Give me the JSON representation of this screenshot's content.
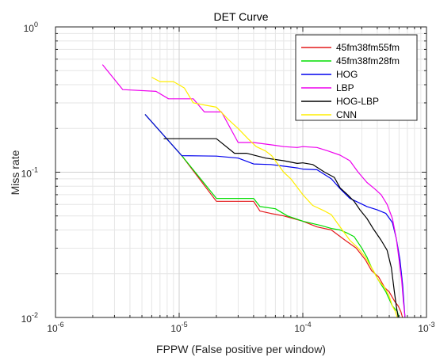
{
  "chart_data": {
    "type": "line",
    "title": "DET Curve",
    "xlabel": "FPPW (False positive per window)",
    "ylabel": "Miss rate",
    "xscale": "log",
    "yscale": "log",
    "xlim": [
      1e-06,
      0.001
    ],
    "ylim": [
      0.01,
      1
    ],
    "grid": true,
    "legend_position": "top-right",
    "x_ticks": [
      {
        "base": "10",
        "exp": "-6"
      },
      {
        "base": "10",
        "exp": "-5"
      },
      {
        "base": "10",
        "exp": "-4"
      },
      {
        "base": "10",
        "exp": "-3"
      }
    ],
    "y_ticks": [
      {
        "base": "10",
        "exp": "-2"
      },
      {
        "base": "10",
        "exp": "-1"
      },
      {
        "base": "10",
        "exp": "0"
      }
    ],
    "series": [
      {
        "name": "45fm38fm55fm",
        "color": "#e41a1c",
        "points": [
          [
            5.3e-06,
            0.25
          ],
          [
            1.05e-05,
            0.13
          ],
          [
            2e-05,
            0.063
          ],
          [
            3.3e-05,
            0.063
          ],
          [
            4e-05,
            0.063
          ],
          [
            4.5e-05,
            0.054
          ],
          [
            5.5e-05,
            0.052
          ],
          [
            7e-05,
            0.05
          ],
          [
            0.0001,
            0.046
          ],
          [
            0.00013,
            0.042
          ],
          [
            0.00017,
            0.04
          ],
          [
            0.00022,
            0.034
          ],
          [
            0.00027,
            0.03
          ],
          [
            0.00032,
            0.025
          ],
          [
            0.00036,
            0.021
          ],
          [
            0.00041,
            0.019
          ],
          [
            0.00046,
            0.016
          ],
          [
            0.0005,
            0.015
          ],
          [
            0.00055,
            0.013
          ],
          [
            0.00059,
            0.012
          ],
          [
            0.00062,
            0.011
          ],
          [
            0.00064,
            0.01
          ]
        ]
      },
      {
        "name": "45fm38fm28fm",
        "color": "#00dd00",
        "points": [
          [
            5.3e-06,
            0.25
          ],
          [
            1.05e-05,
            0.13
          ],
          [
            2e-05,
            0.066
          ],
          [
            4e-05,
            0.066
          ],
          [
            4.5e-05,
            0.058
          ],
          [
            6e-05,
            0.056
          ],
          [
            7.5e-05,
            0.05
          ],
          [
            0.0001,
            0.046
          ],
          [
            0.00014,
            0.043
          ],
          [
            0.00017,
            0.041
          ],
          [
            0.0002,
            0.04
          ],
          [
            0.00023,
            0.038
          ],
          [
            0.00026,
            0.036
          ],
          [
            0.0003,
            0.03
          ],
          [
            0.00033,
            0.026
          ],
          [
            0.00036,
            0.022
          ],
          [
            0.00041,
            0.018
          ],
          [
            0.00047,
            0.015
          ],
          [
            0.00053,
            0.012
          ],
          [
            0.00058,
            0.011
          ],
          [
            0.0006,
            0.01
          ]
        ]
      },
      {
        "name": "HOG",
        "color": "#0000ee",
        "points": [
          [
            5.3e-06,
            0.25
          ],
          [
            1.05e-05,
            0.13
          ],
          [
            2e-05,
            0.129
          ],
          [
            3e-05,
            0.125
          ],
          [
            4e-05,
            0.114
          ],
          [
            5.5e-05,
            0.113
          ],
          [
            7e-05,
            0.11
          ],
          [
            9e-05,
            0.107
          ],
          [
            0.0001,
            0.105
          ],
          [
            0.00013,
            0.104
          ],
          [
            0.00017,
            0.09
          ],
          [
            0.0002,
            0.077
          ],
          [
            0.00024,
            0.066
          ],
          [
            0.00028,
            0.062
          ],
          [
            0.00033,
            0.058
          ],
          [
            0.0004,
            0.055
          ],
          [
            0.00047,
            0.052
          ],
          [
            0.00053,
            0.045
          ],
          [
            0.00057,
            0.035
          ],
          [
            0.00061,
            0.025
          ],
          [
            0.00064,
            0.017
          ],
          [
            0.00066,
            0.012
          ],
          [
            0.00067,
            0.01
          ]
        ]
      },
      {
        "name": "LBP",
        "color": "#ee00ee",
        "points": [
          [
            2.4e-06,
            0.55
          ],
          [
            3.5e-06,
            0.37
          ],
          [
            6.5e-06,
            0.36
          ],
          [
            8.2e-06,
            0.32
          ],
          [
            1.3e-05,
            0.32
          ],
          [
            1.6e-05,
            0.26
          ],
          [
            2.2e-05,
            0.26
          ],
          [
            3e-05,
            0.16
          ],
          [
            4e-05,
            0.16
          ],
          [
            6e-05,
            0.153
          ],
          [
            7e-05,
            0.15
          ],
          [
            9e-05,
            0.148
          ],
          [
            0.0001,
            0.15
          ],
          [
            0.00013,
            0.148
          ],
          [
            0.00016,
            0.14
          ],
          [
            0.0002,
            0.131
          ],
          [
            0.00024,
            0.12
          ],
          [
            0.00028,
            0.1
          ],
          [
            0.00033,
            0.085
          ],
          [
            0.00038,
            0.077
          ],
          [
            0.00043,
            0.07
          ],
          [
            0.00048,
            0.06
          ],
          [
            0.00053,
            0.048
          ],
          [
            0.00057,
            0.035
          ],
          [
            0.0006,
            0.025
          ],
          [
            0.00063,
            0.018
          ],
          [
            0.00065,
            0.013
          ],
          [
            0.00067,
            0.01
          ]
        ]
      },
      {
        "name": "HOG-LBP",
        "color": "#000000",
        "points": [
          [
            7.5e-06,
            0.17
          ],
          [
            1.2e-05,
            0.17
          ],
          [
            2e-05,
            0.17
          ],
          [
            2.8e-05,
            0.135
          ],
          [
            3.5e-05,
            0.135
          ],
          [
            5e-05,
            0.125
          ],
          [
            7e-05,
            0.12
          ],
          [
            9e-05,
            0.115
          ],
          [
            0.0001,
            0.116
          ],
          [
            0.00012,
            0.113
          ],
          [
            0.00015,
            0.1
          ],
          [
            0.00018,
            0.092
          ],
          [
            0.0002,
            0.078
          ],
          [
            0.00023,
            0.07
          ],
          [
            0.00026,
            0.063
          ],
          [
            0.00029,
            0.055
          ],
          [
            0.00033,
            0.048
          ],
          [
            0.00037,
            0.041
          ],
          [
            0.00043,
            0.034
          ],
          [
            0.00048,
            0.029
          ],
          [
            0.00052,
            0.022
          ],
          [
            0.00055,
            0.015
          ],
          [
            0.00057,
            0.012
          ],
          [
            0.00059,
            0.01
          ]
        ]
      },
      {
        "name": "CNN",
        "color": "#ffee00",
        "points": [
          [
            6e-06,
            0.45
          ],
          [
            7e-06,
            0.42
          ],
          [
            9e-06,
            0.42
          ],
          [
            1.1e-05,
            0.38
          ],
          [
            1.3e-05,
            0.3
          ],
          [
            1.6e-05,
            0.29
          ],
          [
            2e-05,
            0.28
          ],
          [
            2.5e-05,
            0.23
          ],
          [
            3e-05,
            0.2
          ],
          [
            3.6e-05,
            0.17
          ],
          [
            4.2e-05,
            0.15
          ],
          [
            5e-05,
            0.14
          ],
          [
            5.6e-05,
            0.13
          ],
          [
            6e-05,
            0.12
          ],
          [
            7e-05,
            0.1
          ],
          [
            8e-05,
            0.09
          ],
          [
            0.0001,
            0.07
          ],
          [
            0.00012,
            0.059
          ],
          [
            0.00015,
            0.054
          ],
          [
            0.00017,
            0.051
          ],
          [
            0.0002,
            0.042
          ],
          [
            0.00024,
            0.034
          ],
          [
            0.00028,
            0.03
          ],
          [
            0.00032,
            0.026
          ],
          [
            0.00036,
            0.022
          ],
          [
            0.00041,
            0.018
          ],
          [
            0.00046,
            0.016
          ],
          [
            0.0005,
            0.014
          ],
          [
            0.00053,
            0.012
          ],
          [
            0.00056,
            0.011
          ],
          [
            0.00058,
            0.01
          ]
        ]
      }
    ]
  }
}
